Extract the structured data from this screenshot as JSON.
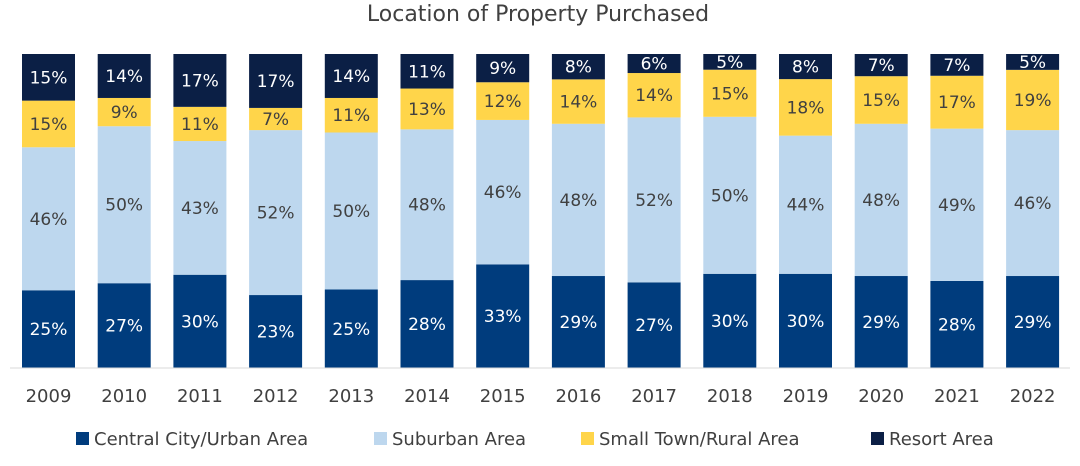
{
  "chart_data": {
    "type": "bar",
    "stacked": true,
    "title": "Location of Property Purchased",
    "categories": [
      "2009",
      "2010",
      "2011",
      "2012",
      "2013",
      "2014",
      "2015",
      "2016",
      "2017",
      "2018",
      "2019",
      "2020",
      "2021",
      "2022"
    ],
    "series": [
      {
        "name": "Central City/Urban Area",
        "color": "#003c7d",
        "label_color": "#ffffff",
        "values": [
          25,
          27,
          30,
          23,
          25,
          28,
          33,
          29,
          27,
          30,
          30,
          29,
          28,
          29
        ]
      },
      {
        "name": "Suburban Area",
        "color": "#bdd7ee",
        "label_color": "#404040",
        "values": [
          46,
          50,
          43,
          52,
          50,
          48,
          46,
          48,
          52,
          50,
          44,
          48,
          49,
          46
        ]
      },
      {
        "name": "Small Town/Rural Area",
        "color": "#ffd54a",
        "label_color": "#404040",
        "values": [
          15,
          9,
          11,
          7,
          11,
          13,
          12,
          14,
          14,
          15,
          18,
          15,
          17,
          19
        ]
      },
      {
        "name": "Resort Area",
        "color": "#0b1f45",
        "label_color": "#ffffff",
        "values": [
          15,
          14,
          17,
          17,
          14,
          11,
          9,
          8,
          6,
          5,
          8,
          7,
          7,
          5
        ]
      }
    ],
    "value_suffix": "%",
    "legend_position": "bottom",
    "grid": false
  }
}
